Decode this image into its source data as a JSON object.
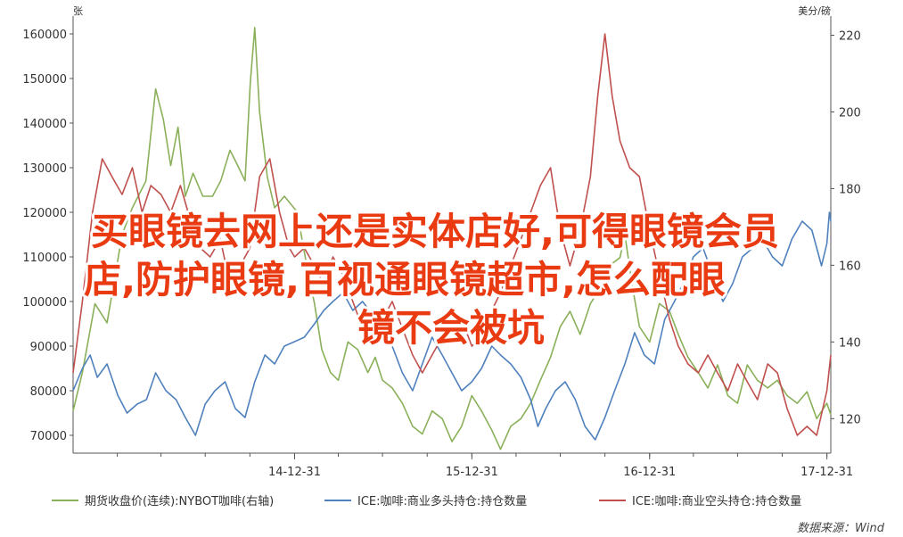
{
  "chart_data": {
    "type": "line",
    "left_axis": {
      "unit": "张",
      "ticks": [
        70000,
        80000,
        90000,
        100000,
        110000,
        120000,
        130000,
        140000,
        150000,
        160000
      ],
      "range": [
        66000,
        164000
      ]
    },
    "right_axis": {
      "unit": "美分/磅",
      "ticks": [
        120,
        140,
        160,
        180,
        200,
        220
      ],
      "range": [
        111,
        225
      ]
    },
    "x_ticks": [
      "14-12-31",
      "15-12-31",
      "16-12-31",
      "17-12-31"
    ],
    "x_range": [
      "2013-10-01",
      "2018-01-08"
    ],
    "series": [
      {
        "name": "期货收盘价(连续):NYBOT咖啡(右轴)",
        "axis": "right",
        "color": "#8ab05a",
        "points": [
          [
            "2013-10-01",
            122
          ],
          [
            "2013-10-20",
            132
          ],
          [
            "2013-11-15",
            150
          ],
          [
            "2013-12-10",
            145
          ],
          [
            "2014-01-10",
            168
          ],
          [
            "2014-01-31",
            175
          ],
          [
            "2014-02-28",
            182
          ],
          [
            "2014-03-20",
            206
          ],
          [
            "2014-04-05",
            198
          ],
          [
            "2014-04-20",
            186
          ],
          [
            "2014-05-05",
            196
          ],
          [
            "2014-05-20",
            178
          ],
          [
            "2014-06-05",
            184
          ],
          [
            "2014-06-25",
            178
          ],
          [
            "2014-07-15",
            178
          ],
          [
            "2014-08-01",
            182
          ],
          [
            "2014-08-20",
            190
          ],
          [
            "2014-09-05",
            186
          ],
          [
            "2014-09-20",
            182
          ],
          [
            "2014-10-01",
            208
          ],
          [
            "2014-10-10",
            222
          ],
          [
            "2014-10-20",
            200
          ],
          [
            "2014-11-05",
            183
          ],
          [
            "2014-11-20",
            175
          ],
          [
            "2014-12-10",
            178
          ],
          [
            "2015-01-05",
            174
          ],
          [
            "2015-01-25",
            160
          ],
          [
            "2015-02-10",
            150
          ],
          [
            "2015-02-25",
            138
          ],
          [
            "2015-03-15",
            132
          ],
          [
            "2015-03-31",
            130
          ],
          [
            "2015-04-20",
            140
          ],
          [
            "2015-05-10",
            138
          ],
          [
            "2015-05-31",
            132
          ],
          [
            "2015-06-15",
            136
          ],
          [
            "2015-06-30",
            130
          ],
          [
            "2015-07-20",
            128
          ],
          [
            "2015-08-10",
            124
          ],
          [
            "2015-08-31",
            118
          ],
          [
            "2015-09-20",
            116
          ],
          [
            "2015-10-10",
            122
          ],
          [
            "2015-10-31",
            120
          ],
          [
            "2015-11-20",
            114
          ],
          [
            "2015-12-10",
            118
          ],
          [
            "2015-12-31",
            126
          ],
          [
            "2016-01-20",
            122
          ],
          [
            "2016-02-10",
            117
          ],
          [
            "2016-02-28",
            112
          ],
          [
            "2016-03-20",
            118
          ],
          [
            "2016-04-10",
            120
          ],
          [
            "2016-04-30",
            124
          ],
          [
            "2016-05-20",
            130
          ],
          [
            "2016-06-10",
            136
          ],
          [
            "2016-06-30",
            144
          ],
          [
            "2016-07-20",
            148
          ],
          [
            "2016-08-10",
            142
          ],
          [
            "2016-08-31",
            150
          ],
          [
            "2016-09-20",
            154
          ],
          [
            "2016-10-10",
            160
          ],
          [
            "2016-10-31",
            162
          ],
          [
            "2016-11-10",
            168
          ],
          [
            "2016-11-25",
            155
          ],
          [
            "2016-12-10",
            144
          ],
          [
            "2016-12-31",
            140
          ],
          [
            "2017-01-20",
            150
          ],
          [
            "2017-02-10",
            148
          ],
          [
            "2017-02-28",
            142
          ],
          [
            "2017-03-20",
            136
          ],
          [
            "2017-04-10",
            132
          ],
          [
            "2017-04-30",
            128
          ],
          [
            "2017-05-20",
            134
          ],
          [
            "2017-06-10",
            126
          ],
          [
            "2017-06-30",
            124
          ],
          [
            "2017-07-20",
            134
          ],
          [
            "2017-08-10",
            130
          ],
          [
            "2017-08-31",
            128
          ],
          [
            "2017-09-20",
            130
          ],
          [
            "2017-10-10",
            126
          ],
          [
            "2017-10-31",
            124
          ],
          [
            "2017-11-20",
            127
          ],
          [
            "2017-12-10",
            120
          ],
          [
            "2017-12-31",
            124
          ],
          [
            "2018-01-08",
            121
          ]
        ]
      },
      {
        "name": "ICE:咖啡:商业多头持仓:持仓数量",
        "axis": "left",
        "color": "#4f81bd",
        "points": [
          [
            "2013-10-01",
            80000
          ],
          [
            "2013-10-20",
            85000
          ],
          [
            "2013-11-05",
            88000
          ],
          [
            "2013-11-20",
            83000
          ],
          [
            "2013-12-10",
            86000
          ],
          [
            "2014-01-01",
            79000
          ],
          [
            "2014-01-20",
            75000
          ],
          [
            "2014-02-10",
            77000
          ],
          [
            "2014-03-01",
            78000
          ],
          [
            "2014-03-20",
            84000
          ],
          [
            "2014-04-10",
            80000
          ],
          [
            "2014-05-01",
            78000
          ],
          [
            "2014-05-20",
            74000
          ],
          [
            "2014-06-10",
            70000
          ],
          [
            "2014-06-30",
            77000
          ],
          [
            "2014-07-20",
            80000
          ],
          [
            "2014-08-10",
            82000
          ],
          [
            "2014-08-31",
            76000
          ],
          [
            "2014-09-20",
            74000
          ],
          [
            "2014-10-10",
            82000
          ],
          [
            "2014-10-31",
            88000
          ],
          [
            "2014-11-20",
            86000
          ],
          [
            "2014-12-10",
            90000
          ],
          [
            "2014-12-31",
            91000
          ],
          [
            "2015-01-20",
            92000
          ],
          [
            "2015-02-10",
            95000
          ],
          [
            "2015-03-01",
            98000
          ],
          [
            "2015-03-20",
            100000
          ],
          [
            "2015-04-10",
            102000
          ],
          [
            "2015-04-30",
            98000
          ],
          [
            "2015-05-20",
            100000
          ],
          [
            "2015-06-10",
            97000
          ],
          [
            "2015-06-30",
            94000
          ],
          [
            "2015-07-20",
            90000
          ],
          [
            "2015-08-10",
            84000
          ],
          [
            "2015-08-31",
            80000
          ],
          [
            "2015-09-20",
            86000
          ],
          [
            "2015-10-10",
            92000
          ],
          [
            "2015-10-31",
            88000
          ],
          [
            "2015-11-20",
            84000
          ],
          [
            "2015-12-10",
            80000
          ],
          [
            "2015-12-31",
            82000
          ],
          [
            "2016-01-20",
            85000
          ],
          [
            "2016-02-10",
            90000
          ],
          [
            "2016-02-28",
            88000
          ],
          [
            "2016-03-20",
            86000
          ],
          [
            "2016-04-10",
            83000
          ],
          [
            "2016-04-30",
            78000
          ],
          [
            "2016-05-15",
            72000
          ],
          [
            "2016-05-31",
            76000
          ],
          [
            "2016-06-20",
            80000
          ],
          [
            "2016-07-10",
            82000
          ],
          [
            "2016-07-31",
            78000
          ],
          [
            "2016-08-20",
            72000
          ],
          [
            "2016-09-10",
            69000
          ],
          [
            "2016-09-30",
            74000
          ],
          [
            "2016-10-20",
            80000
          ],
          [
            "2016-11-10",
            86000
          ],
          [
            "2016-11-30",
            93000
          ],
          [
            "2016-12-20",
            88000
          ],
          [
            "2017-01-10",
            86000
          ],
          [
            "2017-01-31",
            96000
          ],
          [
            "2017-02-20",
            100000
          ],
          [
            "2017-03-10",
            104000
          ],
          [
            "2017-03-31",
            110000
          ],
          [
            "2017-04-20",
            112000
          ],
          [
            "2017-05-10",
            106000
          ],
          [
            "2017-05-31",
            100000
          ],
          [
            "2017-06-20",
            104000
          ],
          [
            "2017-07-10",
            110000
          ],
          [
            "2017-07-31",
            112000
          ],
          [
            "2017-08-20",
            114000
          ],
          [
            "2017-09-10",
            110000
          ],
          [
            "2017-09-30",
            108000
          ],
          [
            "2017-10-20",
            114000
          ],
          [
            "2017-11-10",
            118000
          ],
          [
            "2017-11-30",
            116000
          ],
          [
            "2017-12-20",
            108000
          ],
          [
            "2017-12-31",
            113000
          ],
          [
            "2018-01-05",
            120000
          ],
          [
            "2018-01-08",
            118000
          ]
        ]
      },
      {
        "name": "ICE:咖啡:商业空头持仓:持仓数量",
        "axis": "left",
        "color": "#c0504d",
        "points": [
          [
            "2013-10-01",
            84000
          ],
          [
            "2013-10-20",
            100000
          ],
          [
            "2013-11-10",
            120000
          ],
          [
            "2013-11-30",
            132000
          ],
          [
            "2013-12-20",
            128000
          ],
          [
            "2014-01-10",
            124000
          ],
          [
            "2014-01-31",
            130000
          ],
          [
            "2014-02-20",
            120000
          ],
          [
            "2014-03-10",
            126000
          ],
          [
            "2014-03-31",
            124000
          ],
          [
            "2014-04-20",
            120000
          ],
          [
            "2014-05-10",
            126000
          ],
          [
            "2014-05-31",
            118000
          ],
          [
            "2014-06-20",
            112000
          ],
          [
            "2014-07-10",
            110000
          ],
          [
            "2014-07-31",
            114000
          ],
          [
            "2014-08-20",
            104000
          ],
          [
            "2014-09-10",
            108000
          ],
          [
            "2014-09-30",
            112000
          ],
          [
            "2014-10-20",
            128000
          ],
          [
            "2014-11-10",
            132000
          ],
          [
            "2014-11-30",
            120000
          ],
          [
            "2014-12-20",
            112000
          ],
          [
            "2014-12-31",
            110000
          ],
          [
            "2015-01-20",
            112000
          ],
          [
            "2015-02-10",
            108000
          ],
          [
            "2015-02-28",
            104000
          ],
          [
            "2015-03-20",
            110000
          ],
          [
            "2015-04-10",
            106000
          ],
          [
            "2015-04-30",
            100000
          ],
          [
            "2015-05-20",
            94000
          ],
          [
            "2015-06-10",
            90000
          ],
          [
            "2015-06-30",
            96000
          ],
          [
            "2015-07-20",
            100000
          ],
          [
            "2015-08-10",
            94000
          ],
          [
            "2015-08-31",
            88000
          ],
          [
            "2015-09-20",
            84000
          ],
          [
            "2015-10-10",
            88000
          ],
          [
            "2015-10-31",
            92000
          ],
          [
            "2015-11-20",
            98000
          ],
          [
            "2015-12-10",
            96000
          ],
          [
            "2015-12-31",
            90000
          ],
          [
            "2016-01-20",
            92000
          ],
          [
            "2016-02-10",
            98000
          ],
          [
            "2016-02-28",
            102000
          ],
          [
            "2016-03-20",
            108000
          ],
          [
            "2016-04-10",
            114000
          ],
          [
            "2016-04-30",
            120000
          ],
          [
            "2016-05-20",
            126000
          ],
          [
            "2016-06-10",
            130000
          ],
          [
            "2016-06-30",
            116000
          ],
          [
            "2016-07-20",
            108000
          ],
          [
            "2016-08-10",
            116000
          ],
          [
            "2016-08-31",
            128000
          ],
          [
            "2016-09-15",
            146000
          ],
          [
            "2016-09-30",
            160000
          ],
          [
            "2016-10-15",
            146000
          ],
          [
            "2016-10-31",
            136000
          ],
          [
            "2016-11-20",
            130000
          ],
          [
            "2016-12-10",
            128000
          ],
          [
            "2016-12-31",
            116000
          ],
          [
            "2017-01-20",
            106000
          ],
          [
            "2017-02-10",
            96000
          ],
          [
            "2017-02-28",
            90000
          ],
          [
            "2017-03-20",
            86000
          ],
          [
            "2017-04-10",
            84000
          ],
          [
            "2017-04-30",
            88000
          ],
          [
            "2017-05-20",
            84000
          ],
          [
            "2017-06-10",
            80000
          ],
          [
            "2017-06-30",
            86000
          ],
          [
            "2017-07-20",
            82000
          ],
          [
            "2017-08-10",
            78000
          ],
          [
            "2017-08-31",
            86000
          ],
          [
            "2017-09-20",
            84000
          ],
          [
            "2017-10-10",
            76000
          ],
          [
            "2017-10-31",
            70000
          ],
          [
            "2017-11-20",
            72000
          ],
          [
            "2017-12-10",
            70000
          ],
          [
            "2017-12-31",
            80000
          ],
          [
            "2018-01-08",
            88000
          ]
        ]
      }
    ],
    "legend_position": "bottom",
    "grid": false
  },
  "overlay": {
    "title_lines": [
      "买眼镜去网上还是实体店好,可得眼镜会员",
      "店,防护眼镜,百视通眼镜超市,怎么配眼",
      "镜不会被坑"
    ]
  },
  "source": "数据来源：Wind"
}
